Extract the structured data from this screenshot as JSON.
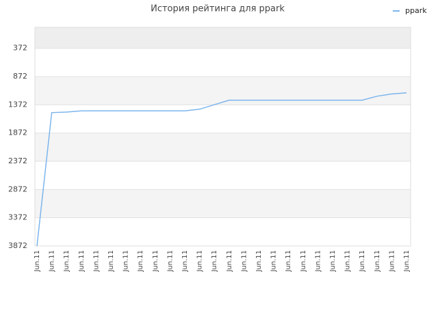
{
  "chart_data": {
    "type": "line",
    "title": "История рейтинга для ppark",
    "categories": [
      "Jun.11",
      "Jun.11",
      "Jun.11",
      "Jun.11",
      "Jun.11",
      "Jun.11",
      "Jun.11",
      "Jun.11",
      "Jun.11",
      "Jun.11",
      "Jun.11",
      "Jun.11",
      "Jun.11",
      "Jun.11",
      "Jun.11",
      "Jun.11",
      "Jun.11",
      "Jun.11",
      "Jun.11",
      "Jun.11",
      "Jun.11",
      "Jun.11",
      "Jun.11",
      "Jun.11",
      "Jun.11",
      "Jun.11"
    ],
    "series": [
      {
        "name": "ppark",
        "color": "#7cb5ec",
        "values": [
          3872,
          1510,
          1500,
          1480,
          1480,
          1480,
          1480,
          1480,
          1480,
          1480,
          1480,
          1450,
          1370,
          1290,
          1290,
          1290,
          1290,
          1290,
          1290,
          1290,
          1290,
          1290,
          1290,
          1220,
          1180,
          1160
        ]
      }
    ],
    "ylim": [
      3872,
      0
    ],
    "yticks": [
      372,
      872,
      1372,
      1872,
      2372,
      2872,
      3372,
      3872
    ],
    "grid": true,
    "legend": "top-right"
  }
}
